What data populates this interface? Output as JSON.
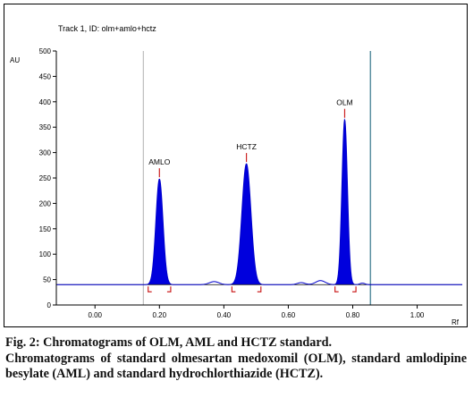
{
  "chart_data": {
    "type": "line",
    "title": "Track 1, ID: olm+amlo+hctz",
    "ylabel": "AU",
    "xlabel": "Rf",
    "xlim": [
      -0.12,
      1.14
    ],
    "ylim": [
      0,
      500
    ],
    "x_ticks": [
      0.0,
      0.2,
      0.4,
      0.6,
      0.8,
      1.0
    ],
    "x_tick_labels": [
      "0.00",
      "0.20",
      "0.40",
      "0.60",
      "0.80",
      "1.00"
    ],
    "y_ticks": [
      0,
      50,
      100,
      150,
      200,
      250,
      300,
      350,
      400,
      450,
      500
    ],
    "y_tick_labels": [
      "0",
      "50",
      "100",
      "150",
      "200",
      "250",
      "300",
      "350",
      "400",
      "450",
      "500"
    ],
    "baseline": 40,
    "start_line_rf": 0.15,
    "front_line_rf": 0.855,
    "grid": false,
    "legend": "none",
    "colors": {
      "trace": "#0000cc",
      "fill": "#0000dd",
      "marker": "#cc2222",
      "start_line": "#b0b0b0",
      "front_line": "#5a8fa0"
    },
    "peaks": [
      {
        "name": "AMLO",
        "rf": 0.2,
        "height": 208,
        "width": 0.011,
        "range": [
          0.165,
          0.235
        ]
      },
      {
        "name": "HCTZ",
        "rf": 0.47,
        "height": 238,
        "width": 0.014,
        "range": [
          0.425,
          0.515
        ]
      },
      {
        "name": "OLM",
        "rf": 0.775,
        "height": 325,
        "width": 0.0085,
        "range": [
          0.745,
          0.81
        ]
      }
    ],
    "minor_bumps": [
      {
        "rf": 0.37,
        "height": 6,
        "width": 0.015
      },
      {
        "rf": 0.64,
        "height": 4,
        "width": 0.012
      },
      {
        "rf": 0.7,
        "height": 8,
        "width": 0.015
      },
      {
        "rf": 0.83,
        "height": 3,
        "width": 0.008
      }
    ]
  },
  "caption": {
    "title": "Fig. 2: Chromatograms of OLM, AML and HCTZ standard.",
    "body": "Chromatograms of standard olmesartan medoxomil (OLM), standard amlodipine besylate (AML) and standard hydrochlorthiazide (HCTZ)."
  }
}
